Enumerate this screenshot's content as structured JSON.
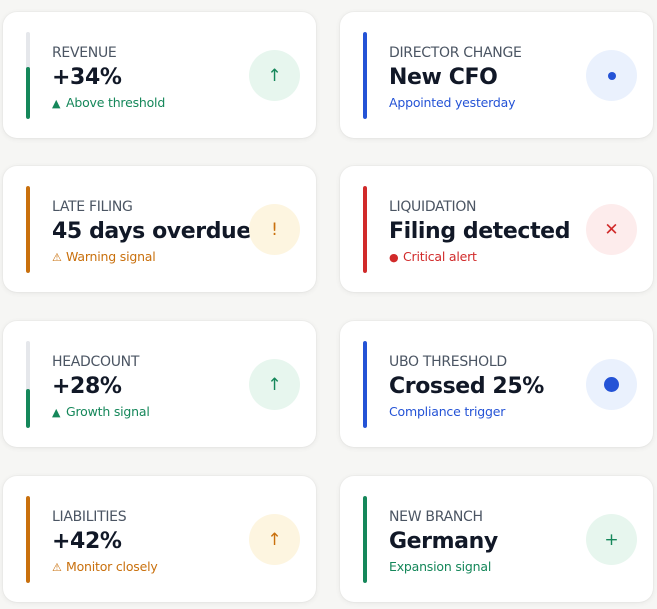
{
  "cards": [
    {
      "label": "REVENUE",
      "value": "+34%",
      "sub": "Above threshold",
      "glyph": "▲",
      "icon": "arrow-up-icon",
      "accent": "#15875a",
      "bar_fill": 0.6,
      "badge_bg": "#e7f6ee",
      "badge_glyph": "↑"
    },
    {
      "label": "DIRECTOR CHANGE",
      "value": "New CFO",
      "sub": "Appointed yesterday",
      "glyph": "",
      "icon": "dot-icon",
      "accent": "#2453d6",
      "bar_fill": 1,
      "badge_bg": "#eaf1fd",
      "badge_glyph": ""
    },
    {
      "label": "LATE FILING",
      "value": "45 days overdue",
      "sub": "Warning signal",
      "glyph": "⚠",
      "icon": "exclamation-icon",
      "accent": "#c9700d",
      "bar_fill": 1,
      "badge_bg": "#fdf5e0",
      "badge_glyph": "!"
    },
    {
      "label": "LIQUIDATION",
      "value": "Filing detected",
      "sub": "Critical alert",
      "glyph": "●",
      "icon": "close-x-icon",
      "accent": "#d12a2a",
      "bar_fill": 1,
      "badge_bg": "#fdecec",
      "badge_glyph": "✕"
    },
    {
      "label": "HEADCOUNT",
      "value": "+28%",
      "sub": "Growth signal",
      "glyph": "▲",
      "icon": "arrow-up-icon",
      "accent": "#15875a",
      "bar_fill": 0.45,
      "badge_bg": "#e7f6ee",
      "badge_glyph": "↑"
    },
    {
      "label": "UBO THRESHOLD",
      "value": "Crossed 25%",
      "sub": "Compliance trigger",
      "glyph": "",
      "icon": "dot-icon",
      "accent": "#2453d6",
      "bar_fill": 1,
      "badge_bg": "#eaf1fd",
      "badge_glyph": ""
    },
    {
      "label": "LIABILITIES",
      "value": "+42%",
      "sub": "Monitor closely",
      "glyph": "⚠",
      "icon": "arrow-up-icon",
      "accent": "#c9700d",
      "bar_fill": 1,
      "badge_bg": "#fdf5e0",
      "badge_glyph": "↑"
    },
    {
      "label": "NEW BRANCH",
      "value": "Germany",
      "sub": "Expansion signal",
      "glyph": "",
      "icon": "plus-icon",
      "accent": "#15875a",
      "bar_fill": 1,
      "badge_bg": "#e7f6ee",
      "badge_glyph": "+"
    }
  ]
}
